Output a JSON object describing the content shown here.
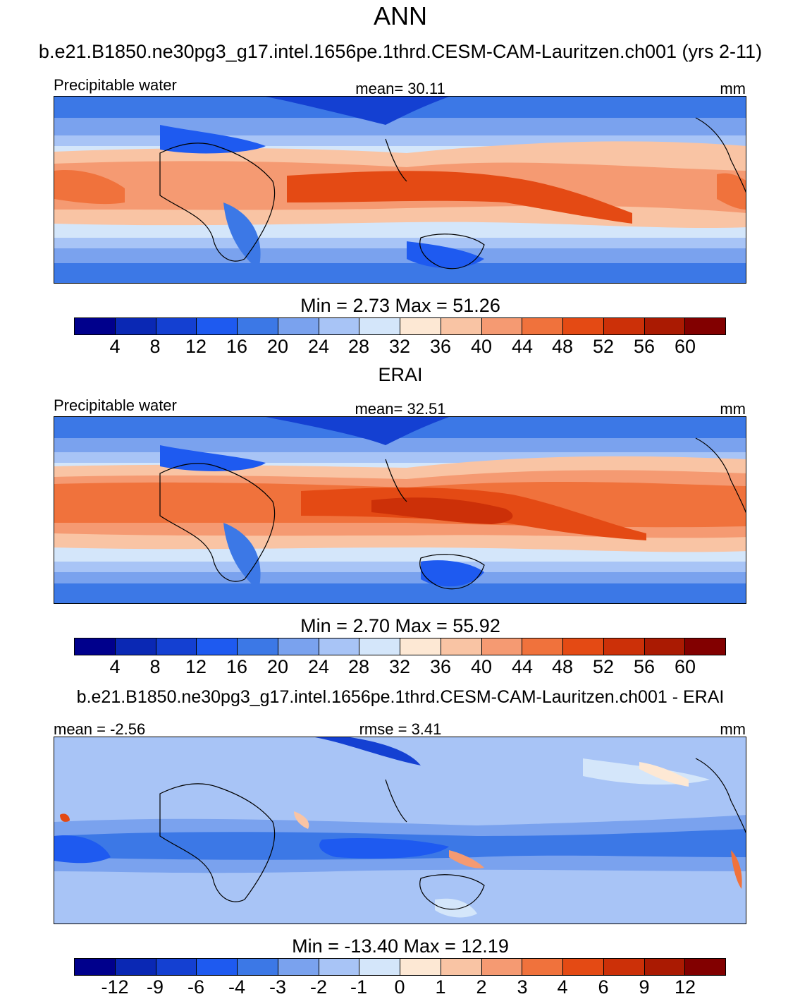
{
  "season": "ANN",
  "case_title": "b.e21.B1850.ne30pg3_g17.intel.1656pe.1thrd.CESM-CAM-Lauritzen.ch001 (yrs 2-11)",
  "obs_title": "ERAI",
  "diff_title": "b.e21.B1850.ne30pg3_g17.intel.1656pe.1thrd.CESM-CAM-Lauritzen.ch001 - ERAI",
  "chart_data": [
    {
      "type": "heatmap",
      "variable": "Precipitable water",
      "units": "mm",
      "stat_label": "mean=  30.11",
      "minmax_label": "Min =   2.73 Max =  51.26",
      "mean": 30.11,
      "min": 2.73,
      "max": 51.26,
      "levels": [
        "4",
        "8",
        "12",
        "16",
        "20",
        "24",
        "28",
        "32",
        "36",
        "40",
        "44",
        "48",
        "52",
        "56",
        "60"
      ]
    },
    {
      "type": "heatmap",
      "variable": "Precipitable water",
      "units": "mm",
      "stat_label": "mean=  32.51",
      "minmax_label": "Min =   2.70 Max =  55.92",
      "mean": 32.51,
      "min": 2.7,
      "max": 55.92,
      "levels": [
        "4",
        "8",
        "12",
        "16",
        "20",
        "24",
        "28",
        "32",
        "36",
        "40",
        "44",
        "48",
        "52",
        "56",
        "60"
      ]
    },
    {
      "type": "heatmap",
      "variable": "",
      "units": "mm",
      "mean_label": "mean =  -2.56",
      "rmse_label": "rmse =   3.41",
      "minmax_label": "Min = -13.40 Max =  12.19",
      "mean": -2.56,
      "rmse": 3.41,
      "min": -13.4,
      "max": 12.19,
      "levels": [
        "-12",
        "-9",
        "-6",
        "-4",
        "-3",
        "-2",
        "-1",
        "0",
        "1",
        "2",
        "3",
        "4",
        "6",
        "9",
        "12"
      ]
    }
  ],
  "colors": {
    "palette": [
      "#00008c",
      "#0a28b4",
      "#1440d2",
      "#1e5af0",
      "#3c78e6",
      "#7aa2ee",
      "#a8c4f6",
      "#d4e6fa",
      "#fde8d4",
      "#f9c4a4",
      "#f59a72",
      "#f0723c",
      "#e44a14",
      "#cc3008",
      "#aa1a02",
      "#820000"
    ]
  }
}
